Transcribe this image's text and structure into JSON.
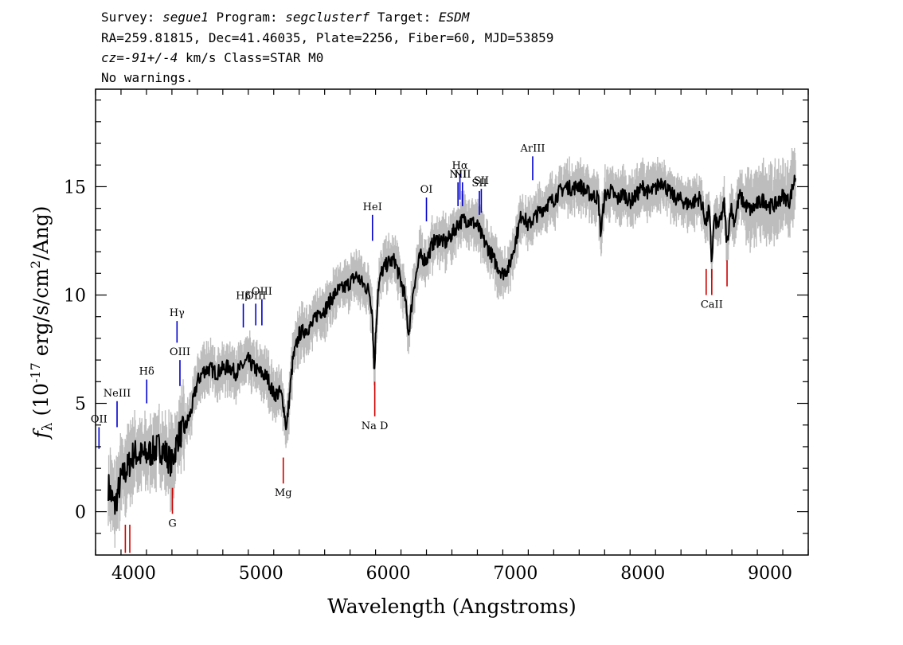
{
  "header": {
    "survey_label": "Survey:",
    "survey": "segue1",
    "program_label": "Program:",
    "program": "segclusterf",
    "target_label": "Target:",
    "target": "ESDM",
    "coords": "RA=259.81815, Dec=41.46035, Plate=2256, Fiber=60, MJD=53859",
    "cz_label": "cz=",
    "cz_value": "-91+/-4",
    "cz_unit_class": " km/s Class=STAR M0",
    "warnings": "No warnings."
  },
  "colors": {
    "flux": "#000000",
    "error_band": "#bdbdbd",
    "emission": "#0000cc",
    "absorption": "#cc0000"
  },
  "chart_data": {
    "type": "line",
    "xlabel": "Wavelength (Angstroms)",
    "ylabel_parts": [
      "f",
      "λ",
      " (10",
      "-17",
      " erg/s/cm",
      "2",
      "/Ang)"
    ],
    "xlim": [
      3700,
      9300
    ],
    "ylim": [
      -2,
      19.5
    ],
    "xticks": [
      4000,
      5000,
      6000,
      7000,
      8000,
      9000
    ],
    "yticks": [
      0,
      5,
      10,
      15
    ],
    "grid": false,
    "series": [
      {
        "role": "flux",
        "x": [
          3800,
          3850,
          3900,
          3950,
          4000,
          4050,
          4100,
          4150,
          4200,
          4250,
          4300,
          4350,
          4400,
          4450,
          4500,
          4550,
          4600,
          4650,
          4700,
          4750,
          4800,
          4850,
          4900,
          4950,
          5000,
          5050,
          5100,
          5150,
          5170,
          5185,
          5200,
          5250,
          5300,
          5350,
          5400,
          5450,
          5500,
          5550,
          5600,
          5650,
          5700,
          5750,
          5800,
          5850,
          5875,
          5890,
          5900,
          5920,
          5950,
          6000,
          6050,
          6100,
          6130,
          6160,
          6200,
          6250,
          6300,
          6350,
          6400,
          6450,
          6500,
          6550,
          6600,
          6650,
          6700,
          6750,
          6800,
          6850,
          6900,
          6950,
          7000,
          7050,
          7100,
          7150,
          7200,
          7250,
          7300,
          7350,
          7400,
          7450,
          7500,
          7550,
          7600,
          7650,
          7670,
          7700,
          7750,
          7800,
          7850,
          7900,
          7950,
          8000,
          8050,
          8100,
          8150,
          8200,
          8250,
          8300,
          8350,
          8400,
          8450,
          8498,
          8520,
          8542,
          8560,
          8600,
          8640,
          8662,
          8690,
          8720,
          8760,
          8800,
          8850,
          8900,
          8950,
          9000,
          9050,
          9100,
          9150,
          9200
        ],
        "y": [
          1.2,
          0.2,
          1.5,
          2.0,
          2.7,
          2.6,
          2.6,
          2.8,
          3.0,
          2.7,
          2.2,
          3.5,
          3.8,
          4.6,
          6.0,
          6.5,
          6.6,
          6.4,
          6.6,
          6.7,
          6.4,
          6.7,
          7.0,
          6.6,
          6.4,
          6.2,
          5.4,
          5.5,
          5.2,
          4.5,
          3.8,
          7.0,
          8.2,
          8.4,
          8.6,
          9.2,
          9.3,
          9.8,
          10.2,
          10.3,
          10.6,
          10.9,
          10.5,
          10.2,
          9.2,
          6.3,
          8.0,
          10.3,
          11.1,
          11.5,
          11.6,
          10.6,
          10.0,
          8.2,
          10.4,
          11.8,
          11.6,
          12.4,
          12.6,
          12.4,
          12.8,
          13.3,
          13.5,
          13.4,
          13.2,
          12.5,
          12.0,
          11.4,
          11.0,
          11.3,
          12.5,
          13.8,
          13.2,
          13.6,
          13.9,
          14.2,
          14.4,
          14.8,
          15.0,
          14.9,
          15.1,
          14.8,
          14.6,
          14.5,
          12.8,
          14.6,
          14.8,
          14.4,
          14.7,
          14.3,
          14.6,
          15.0,
          14.7,
          14.9,
          15.3,
          14.8,
          14.5,
          14.4,
          14.2,
          14.3,
          14.5,
          13.3,
          14.0,
          11.5,
          13.5,
          13.2,
          14.2,
          12.2,
          14.1,
          13.4,
          14.6,
          14.2,
          13.9,
          14.2,
          14.4,
          14.1,
          14.2,
          14.6,
          14.3,
          15.5
        ]
      }
    ],
    "error_band_sigma": 0.8,
    "emission_lines": [
      {
        "label": "OII",
        "x": 3727,
        "y": 2.9,
        "height": 1.0
      },
      {
        "label": "NeIII",
        "x": 3869,
        "y": 3.9,
        "height": 1.2
      },
      {
        "label": "Hδ",
        "x": 4102,
        "y": 5.0,
        "height": 1.1
      },
      {
        "label": "Hγ",
        "x": 4340,
        "y": 7.8,
        "height": 1.0
      },
      {
        "label": "OIII",
        "x": 4363,
        "y": 5.8,
        "height": 1.2
      },
      {
        "label": "Hβ",
        "x": 4861,
        "y": 8.5,
        "height": 1.1
      },
      {
        "label": "OIII",
        "x": 4959,
        "y": 8.6,
        "height": 1.0
      },
      {
        "label": "OIII",
        "x": 5007,
        "y": 8.6,
        "height": 1.2
      },
      {
        "label": "HeI",
        "x": 5876,
        "y": 12.5,
        "height": 1.2
      },
      {
        "label": "OI",
        "x": 6300,
        "y": 13.4,
        "height": 1.1
      },
      {
        "label": "NII",
        "x": 6548,
        "y": 14.1,
        "height": 1.1
      },
      {
        "label": "Hα",
        "x": 6563,
        "y": 14.4,
        "height": 1.2
      },
      {
        "label": "NII",
        "x": 6583,
        "y": 14.1,
        "height": 1.1
      },
      {
        "label": "SII",
        "x": 6716,
        "y": 13.7,
        "height": 1.1
      },
      {
        "label": "SII",
        "x": 6731,
        "y": 13.8,
        "height": 1.1
      },
      {
        "label": "ArIII",
        "x": 7135,
        "y": 15.3,
        "height": 1.1
      }
    ],
    "absorption_lines": [
      {
        "label": "",
        "x": 3934,
        "y": -1.9,
        "height": 1.3
      },
      {
        "label": "",
        "x": 3969,
        "y": -1.9,
        "height": 1.3
      },
      {
        "label": "G",
        "x": 4304,
        "y": -0.1,
        "height": 1.2
      },
      {
        "label": "Mg",
        "x": 5175,
        "y": 1.3,
        "height": 1.2
      },
      {
        "label": "Na D",
        "x": 5894,
        "y": 4.4,
        "height": 1.6
      },
      {
        "label": "",
        "x": 8498,
        "y": 10.0,
        "height": 1.2
      },
      {
        "label": "CaII",
        "x": 8542,
        "y": 10.0,
        "height": 1.2
      },
      {
        "label": "",
        "x": 8662,
        "y": 10.4,
        "height": 1.2
      }
    ]
  }
}
